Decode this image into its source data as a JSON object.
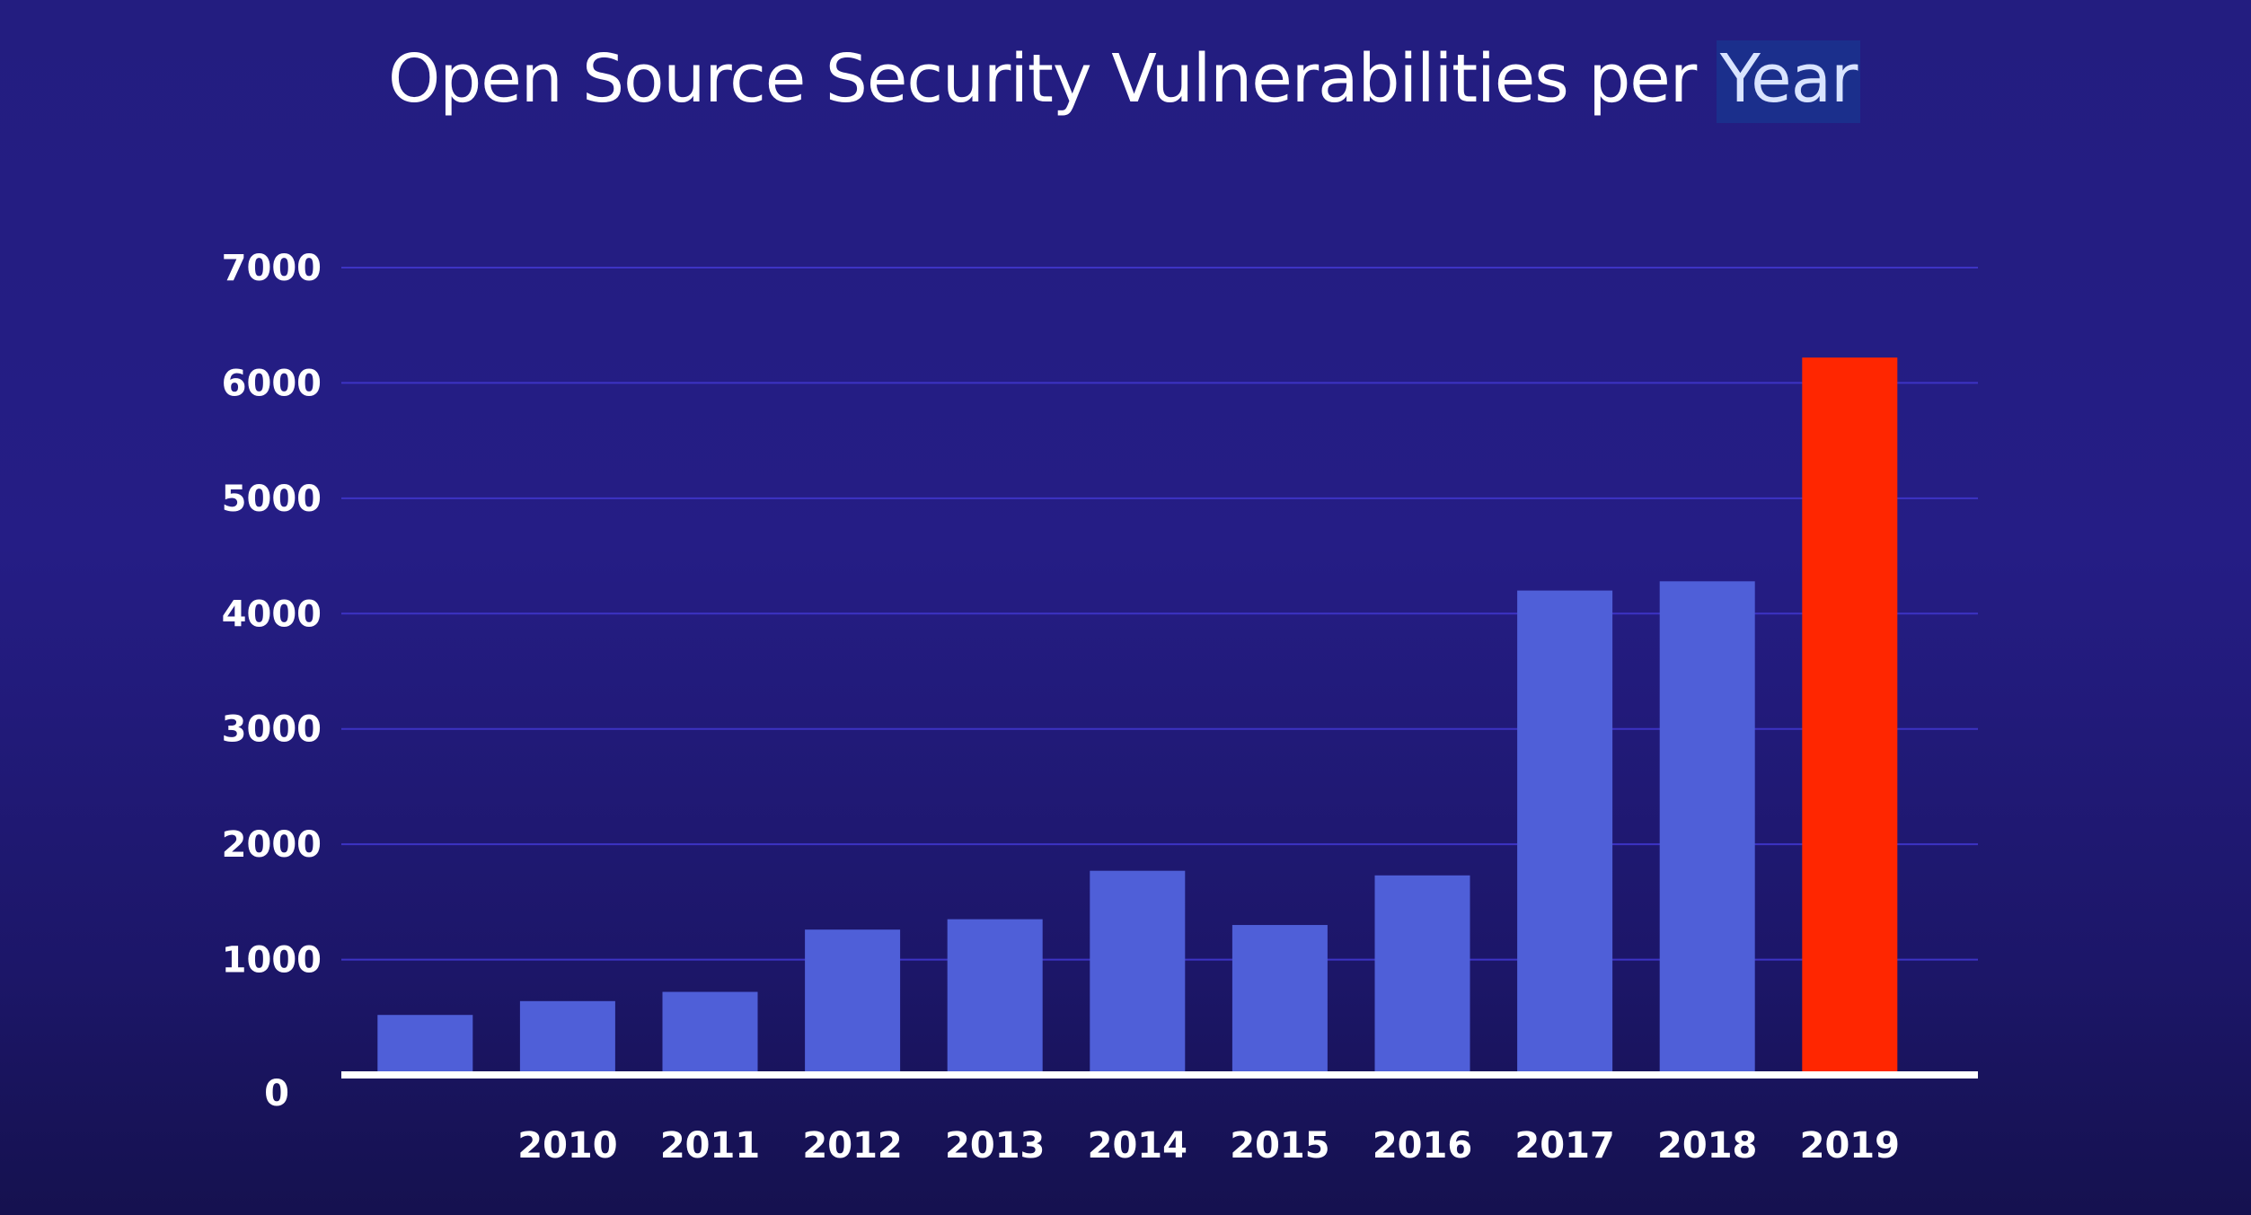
{
  "chart_data": {
    "type": "bar",
    "title": "Open Source Security Vulnerabilities per",
    "title_highlight": "Year",
    "categories": [
      "",
      "2010",
      "2011",
      "2012",
      "2013",
      "2014",
      "2015",
      "2016",
      "2017",
      "2018",
      "2019"
    ],
    "values": [
      520,
      640,
      720,
      1260,
      1350,
      1770,
      1300,
      1730,
      4200,
      4280,
      6220
    ],
    "highlight_index": 10,
    "ylim": [
      0,
      7000
    ],
    "yticks": [
      0,
      1000,
      2000,
      3000,
      4000,
      5000,
      6000,
      7000
    ],
    "grid": true,
    "legend": "none",
    "colors": {
      "bar": "#4f5fd8",
      "highlight_bar": "#ff2600",
      "grid": "#3d33c4",
      "axis": "#ffffff",
      "text": "#ffffff"
    }
  }
}
